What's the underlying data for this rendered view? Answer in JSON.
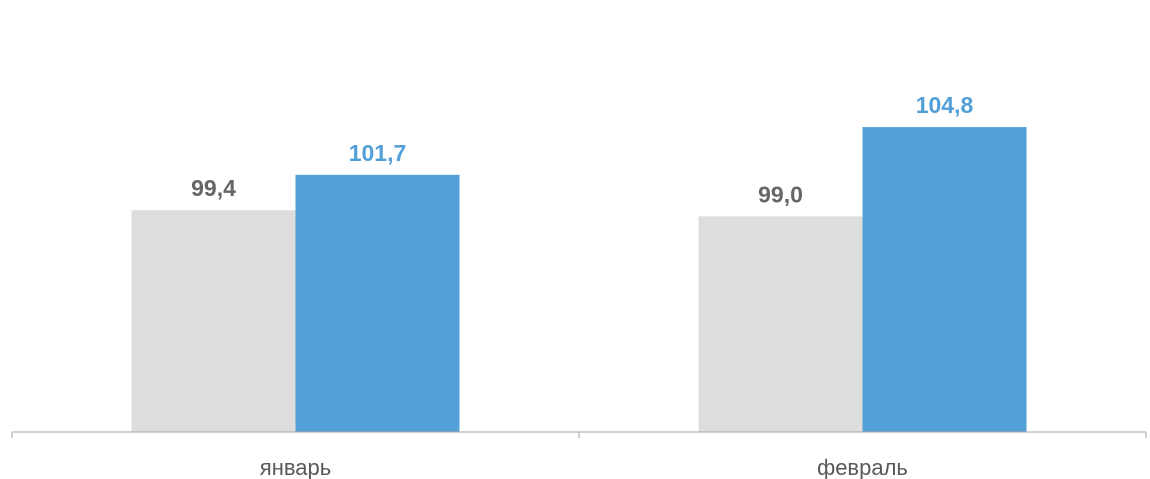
{
  "chart_data": {
    "type": "bar",
    "categories": [
      "январь",
      "февраль"
    ],
    "series": [
      {
        "values": [
          99.4,
          99.0
        ],
        "labels": [
          "99,4",
          "99,0"
        ],
        "color": "#dddddd",
        "label_color": "#666666"
      },
      {
        "values": [
          101.7,
          104.8
        ],
        "labels": [
          "101,7",
          "104,8"
        ],
        "color": "#539fd7",
        "label_color": "#539fd7"
      }
    ],
    "title": "",
    "xlabel": "",
    "ylabel": "",
    "ylim": [
      85,
      107
    ],
    "grid": false,
    "legend": "none",
    "axis_color": "#a6a6a6"
  }
}
